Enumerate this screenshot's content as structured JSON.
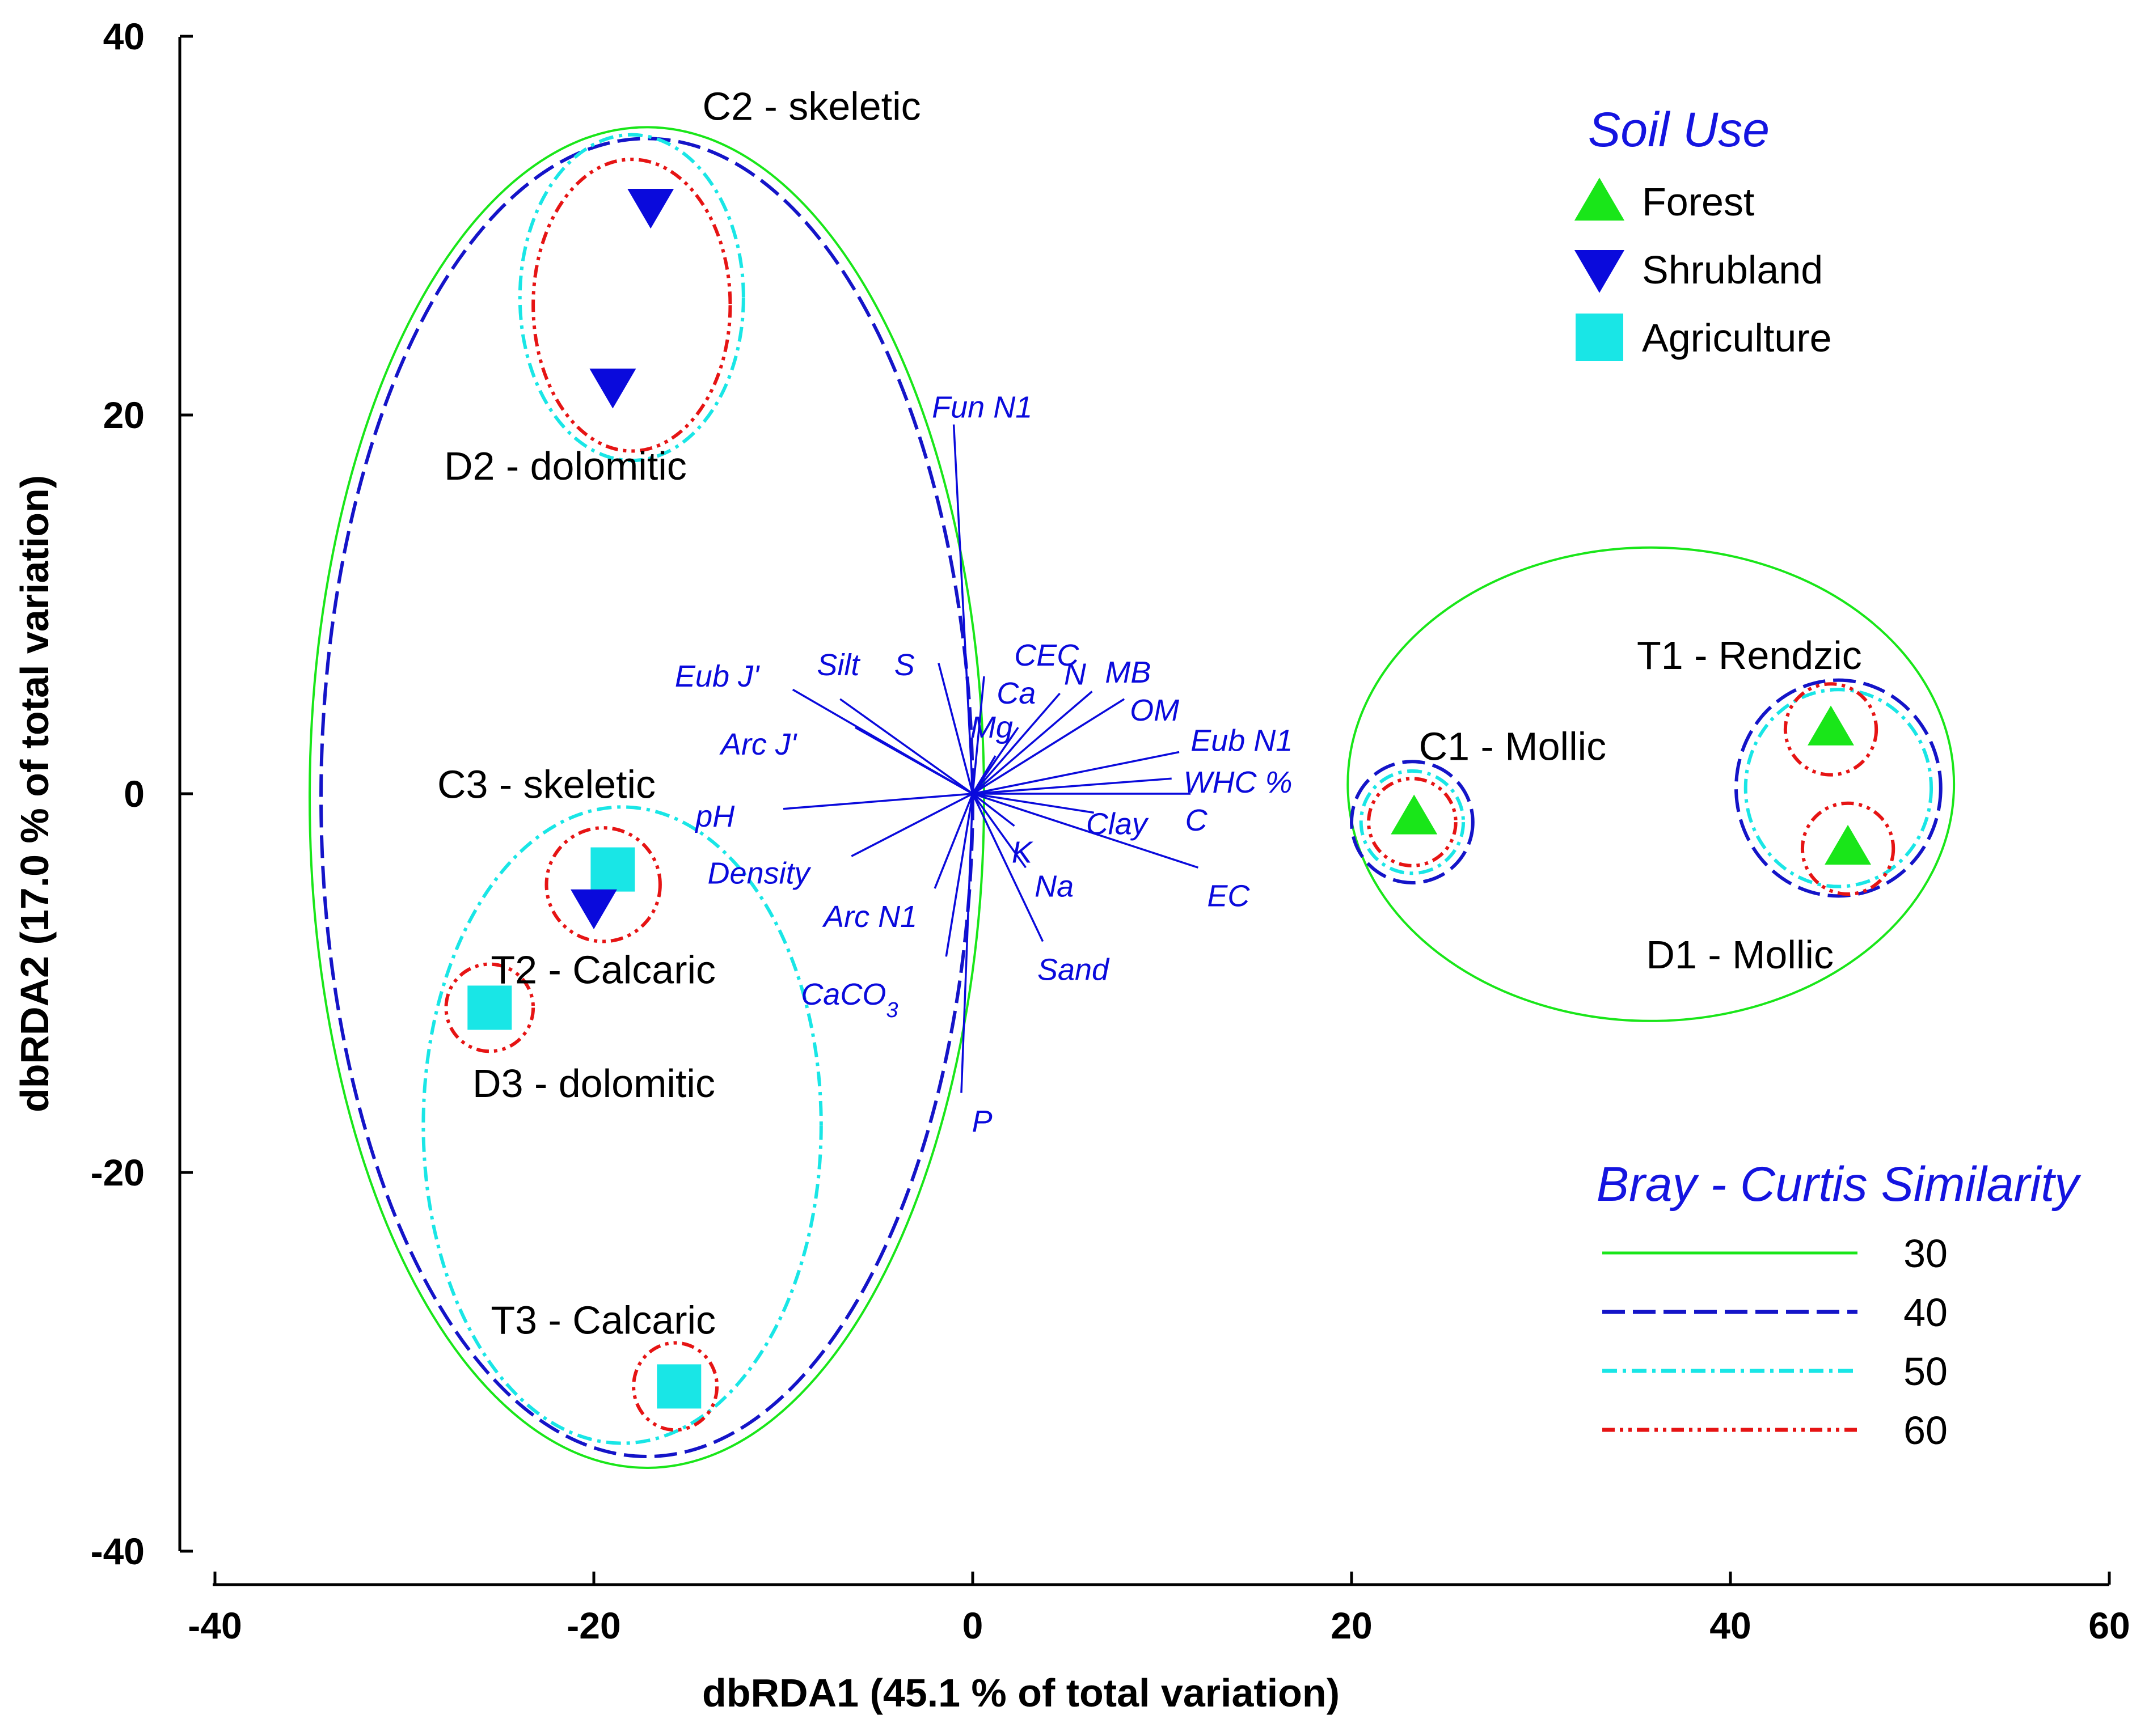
{
  "chart_data": {
    "type": "scatter",
    "subtype": "dbRDA ordination biplot",
    "xlabel": "dbRDA1 (45.1 % of total variation)",
    "ylabel": "dbRDA2 (17.0 % of total variation)",
    "xlim": [
      -40,
      60
    ],
    "ylim": [
      -40,
      40
    ],
    "x_ticks": [
      -40,
      -20,
      0,
      20,
      40,
      60
    ],
    "y_ticks": [
      40,
      20,
      0,
      -20,
      -40
    ],
    "soil_use_legend": {
      "title": "Soil Use",
      "items": [
        {
          "name": "Forest",
          "marker": "triangle-up",
          "color": "#19e619"
        },
        {
          "name": "Shrubland",
          "marker": "triangle-down",
          "color": "#0a0adc"
        },
        {
          "name": "Agriculture",
          "marker": "square",
          "color": "#19e6e6"
        }
      ]
    },
    "similarity_legend": {
      "title": "Bray - Curtis Similarity",
      "items": [
        {
          "level": "30",
          "color": "#19e619",
          "dash": "solid"
        },
        {
          "level": "40",
          "color": "#1414c8",
          "dash": "long-dash"
        },
        {
          "level": "50",
          "color": "#19e6e6",
          "dash": "dash-dot"
        },
        {
          "level": "60",
          "color": "#e61414",
          "dash": "dash-dot-dot"
        }
      ]
    },
    "points": [
      {
        "site": "C2 - skeletic",
        "use": "Shrubland",
        "x": -17,
        "y": 31
      },
      {
        "site": "D2 - dolomitic",
        "use": "Shrubland",
        "x": -19,
        "y": 21.5
      },
      {
        "site": "C3 - skeletic",
        "use": "Agriculture",
        "x": -19,
        "y": -4
      },
      {
        "site": "T2 - Calcaric",
        "use": "Shrubland",
        "x": -20,
        "y": -6
      },
      {
        "site": "D3 - dolomitic",
        "use": "Agriculture",
        "x": -25.5,
        "y": -11.3
      },
      {
        "site": "T3 - Calcaric",
        "use": "Agriculture",
        "x": -15.5,
        "y": -31.3
      },
      {
        "site": "C1 - Mollic",
        "use": "Forest",
        "x": 23.3,
        "y": -1.2
      },
      {
        "site": "T1 - Rendzic",
        "use": "Forest",
        "x": 45.3,
        "y": 3.5
      },
      {
        "site": "D1 - Mollic",
        "use": "Forest",
        "x": 46.2,
        "y": -2.8
      }
    ],
    "site_labels": [
      {
        "text": "C2 - skeletic",
        "x": -8.5,
        "y": 36.3
      },
      {
        "text": "D2 - dolomitic",
        "x": -21.5,
        "y": 17.3
      },
      {
        "text": "C3 - skeletic",
        "x": -22.5,
        "y": 0.5
      },
      {
        "text": "T2 - Calcaric",
        "x": -19.5,
        "y": -9.3
      },
      {
        "text": "D3 - dolomitic",
        "x": -20,
        "y": -15.3
      },
      {
        "text": "T3 - Calcaric",
        "x": -19.5,
        "y": -27.8
      },
      {
        "text": "C1 - Mollic",
        "x": 28.5,
        "y": 2.5
      },
      {
        "text": "T1 - Rendzic",
        "x": 41,
        "y": 7.3
      },
      {
        "text": "D1 - Mollic",
        "x": 40.5,
        "y": -8.5
      }
    ],
    "vectors": [
      {
        "name": "Fun N1",
        "x": -1,
        "y": 19.5,
        "lx": 0.5,
        "ly": 20.4
      },
      {
        "name": "Eub J'",
        "x": -9.5,
        "y": 5.5,
        "lx": -13.5,
        "ly": 6.2
      },
      {
        "name": "Silt",
        "x": -7,
        "y": 5,
        "lx": -7.1,
        "ly": 6.8
      },
      {
        "name": "S",
        "x": -1.8,
        "y": 6.9,
        "lx": -3.6,
        "ly": 6.8
      },
      {
        "name": "CEC",
        "x": 0.6,
        "y": 6.2,
        "lx": 3.9,
        "ly": 7.3
      },
      {
        "name": "Ca",
        "x": 2.4,
        "y": 3.5,
        "lx": 2.3,
        "ly": 5.3
      },
      {
        "name": "Mg",
        "x": 1.2,
        "y": 2,
        "lx": 1,
        "ly": 3.5
      },
      {
        "name": "N",
        "x": 4.6,
        "y": 5.3,
        "lx": 5.4,
        "ly": 6.3
      },
      {
        "name": "MB",
        "x": 6.3,
        "y": 5.4,
        "lx": 8.2,
        "ly": 6.4
      },
      {
        "name": "OM",
        "x": 8,
        "y": 5,
        "lx": 9.6,
        "ly": 4.4
      },
      {
        "name": "Eub N1",
        "x": 10.9,
        "y": 2.2,
        "lx": 14.2,
        "ly": 2.8
      },
      {
        "name": "Arc J'",
        "x": -6.2,
        "y": 3.5,
        "lx": -11.3,
        "ly": 2.6
      },
      {
        "name": "WHC %",
        "x": 10.5,
        "y": 0.8,
        "lx": 14,
        "ly": 0.6
      },
      {
        "name": "C",
        "x": 11.5,
        "y": 0,
        "lx": 11.8,
        "ly": -1.4
      },
      {
        "name": "Clay",
        "x": 6.4,
        "y": -1,
        "lx": 7.6,
        "ly": -1.6
      },
      {
        "name": "pH",
        "x": -10,
        "y": -0.8,
        "lx": -13.6,
        "ly": -1.2
      },
      {
        "name": "K",
        "x": 2.2,
        "y": -1.7,
        "lx": 2.6,
        "ly": -3.1
      },
      {
        "name": "Density",
        "x": -6.4,
        "y": -3.3,
        "lx": -11.3,
        "ly": -4.2
      },
      {
        "name": "EC",
        "x": 11.9,
        "y": -3.9,
        "lx": 13.5,
        "ly": -5.4
      },
      {
        "name": "Na",
        "x": 2.8,
        "y": -3.9,
        "lx": 4.3,
        "ly": -4.9
      },
      {
        "name": "Arc N1",
        "x": -2,
        "y": -5,
        "lx": -5.4,
        "ly": -6.5
      },
      {
        "name": "Sand",
        "x": 3.7,
        "y": -7.8,
        "lx": 5.3,
        "ly": -9.3
      },
      {
        "name": "CaCO",
        "subscript": "3",
        "x": -1.4,
        "y": -8.6,
        "lx": -6.5,
        "ly": -10.6
      },
      {
        "name": "P",
        "x": -0.6,
        "y": -15.8,
        "lx": 0.5,
        "ly": -17.3
      }
    ],
    "clusters": [
      {
        "level": "30",
        "cx": -17.2,
        "cy": -0.2,
        "rx": 17.8,
        "ry": 35.4
      },
      {
        "level": "40",
        "cx": -17.2,
        "cy": -0.2,
        "rx": 17.2,
        "ry": 34.8
      },
      {
        "level": "50",
        "cx": -18,
        "cy": 26.2,
        "rx": 5.9,
        "ry": 8.6
      },
      {
        "level": "60",
        "cx": -18,
        "cy": 25.8,
        "rx": 5.2,
        "ry": 7.7
      },
      {
        "level": "50",
        "cx": -18.5,
        "cy": -17.5,
        "rx": 10.5,
        "ry": 16.8
      },
      {
        "level": "60",
        "cx": -19.5,
        "cy": -4.8,
        "rx": 3,
        "ry": 3
      },
      {
        "level": "60",
        "cx": -25.5,
        "cy": -11.3,
        "rx": 2.3,
        "ry": 2.3
      },
      {
        "level": "60",
        "cx": -15.7,
        "cy": -31.3,
        "rx": 2.2,
        "ry": 2.3
      },
      {
        "level": "30",
        "cx": 35.8,
        "cy": 0.5,
        "rx": 16,
        "ry": 12.5
      },
      {
        "level": "40",
        "cx": 23.2,
        "cy": -1.5,
        "rx": 3.2,
        "ry": 3.2
      },
      {
        "level": "50",
        "cx": 23.2,
        "cy": -1.5,
        "rx": 2.7,
        "ry": 2.7
      },
      {
        "level": "60",
        "cx": 23.2,
        "cy": -1.5,
        "rx": 2.3,
        "ry": 2.3
      },
      {
        "level": "40",
        "cx": 45.7,
        "cy": 0.3,
        "rx": 5.4,
        "ry": 5.7
      },
      {
        "level": "50",
        "cx": 45.7,
        "cy": 0.3,
        "rx": 4.9,
        "ry": 5.2
      },
      {
        "level": "60",
        "cx": 45.3,
        "cy": 3.4,
        "rx": 2.4,
        "ry": 2.4
      },
      {
        "level": "60",
        "cx": 46.2,
        "cy": -2.9,
        "rx": 2.4,
        "ry": 2.4
      }
    ]
  }
}
